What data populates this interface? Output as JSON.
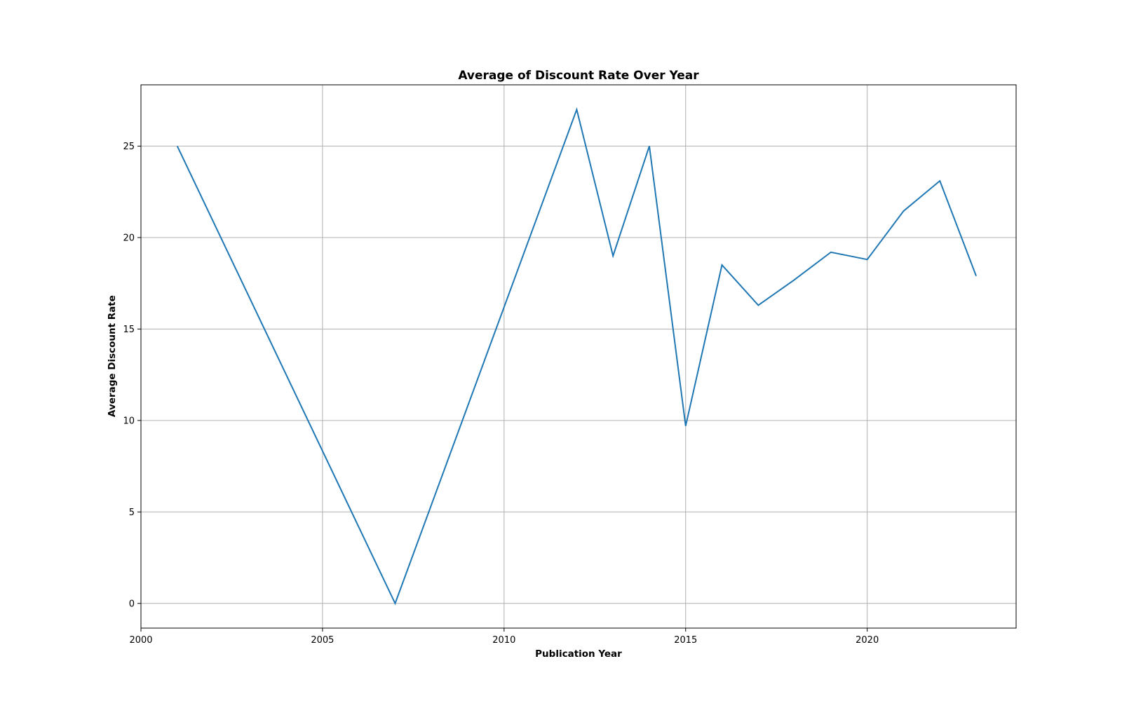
{
  "chart_data": {
    "type": "line",
    "title": "Average of Discount Rate Over Year",
    "xlabel": "Publication Year",
    "ylabel": "Average Discount Rate",
    "xlim": [
      2000,
      2024.1
    ],
    "ylim": [
      -1.35,
      28.35
    ],
    "xticks": [
      2000,
      2005,
      2010,
      2015,
      2020
    ],
    "yticks": [
      0,
      5,
      10,
      15,
      20,
      25
    ],
    "grid": true,
    "legend": "none",
    "series": [
      {
        "color": "#1f77b4",
        "x": [
          2001,
          2007,
          2012,
          2013,
          2014,
          2015,
          2016,
          2017,
          2018,
          2019,
          2020,
          2021,
          2022,
          2023
        ],
        "y": [
          25.0,
          0.0,
          27.0,
          19.0,
          25.0,
          9.7,
          18.5,
          16.3,
          17.7,
          19.2,
          18.8,
          21.45,
          23.1,
          17.9
        ]
      }
    ]
  }
}
